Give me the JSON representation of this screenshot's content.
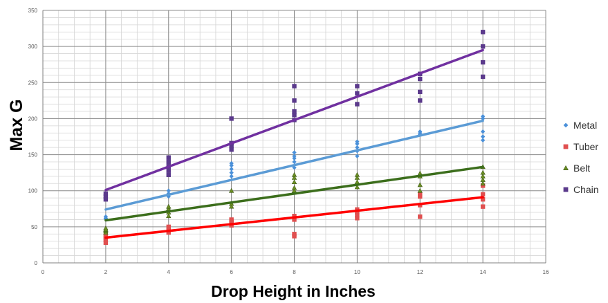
{
  "chart_data": {
    "type": "scatter",
    "title": "",
    "xlabel": "Drop Height in Inches",
    "ylabel": "Max G",
    "xlim": [
      0,
      16
    ],
    "ylim": [
      0,
      350
    ],
    "x_ticks": [
      "0",
      "2",
      "4",
      "6",
      "8",
      "10",
      "12",
      "14",
      "16"
    ],
    "y_ticks": [
      "0",
      "50",
      "100",
      "150",
      "200",
      "250",
      "300",
      "350"
    ],
    "grid": true,
    "legend_position": "right",
    "series": [
      {
        "name": "Metal",
        "marker": "diamond",
        "color": "#4a90d9",
        "trend_color": "#5b9bd5",
        "trendline": [
          [
            2,
            74
          ],
          [
            14,
            197
          ]
        ],
        "points": [
          [
            2,
            62
          ],
          [
            2,
            64
          ],
          [
            2,
            61
          ],
          [
            4,
            92
          ],
          [
            4,
            96
          ],
          [
            4,
            100
          ],
          [
            4,
            94
          ],
          [
            6,
            120
          ],
          [
            6,
            125
          ],
          [
            6,
            130
          ],
          [
            6,
            138
          ],
          [
            6,
            135
          ],
          [
            8,
            132
          ],
          [
            8,
            140
          ],
          [
            8,
            148
          ],
          [
            8,
            153
          ],
          [
            8,
            145
          ],
          [
            10,
            148
          ],
          [
            10,
            155
          ],
          [
            10,
            160
          ],
          [
            10,
            165
          ],
          [
            10,
            168
          ],
          [
            12,
            178
          ],
          [
            12,
            182
          ],
          [
            12,
            180
          ],
          [
            14,
            170
          ],
          [
            14,
            175
          ],
          [
            14,
            182
          ],
          [
            14,
            200
          ],
          [
            14,
            203
          ]
        ]
      },
      {
        "name": "Tuber",
        "marker": "square",
        "color": "#e05050",
        "trend_color": "#ff0000",
        "trendline": [
          [
            2,
            35
          ],
          [
            14,
            91
          ]
        ],
        "points": [
          [
            2,
            28
          ],
          [
            2,
            32
          ],
          [
            2,
            35
          ],
          [
            2,
            38
          ],
          [
            4,
            42
          ],
          [
            4,
            46
          ],
          [
            4,
            48
          ],
          [
            4,
            50
          ],
          [
            6,
            52
          ],
          [
            6,
            56
          ],
          [
            6,
            60
          ],
          [
            6,
            58
          ],
          [
            8,
            37
          ],
          [
            8,
            40
          ],
          [
            8,
            60
          ],
          [
            8,
            65
          ],
          [
            10,
            62
          ],
          [
            10,
            66
          ],
          [
            10,
            70
          ],
          [
            10,
            74
          ],
          [
            12,
            64
          ],
          [
            12,
            80
          ],
          [
            12,
            92
          ],
          [
            12,
            95
          ],
          [
            14,
            78
          ],
          [
            14,
            88
          ],
          [
            14,
            95
          ],
          [
            14,
            107
          ]
        ]
      },
      {
        "name": "Belt",
        "marker": "triangle",
        "color": "#6b8e23",
        "trend_color": "#3c6e1c",
        "trendline": [
          [
            2,
            59
          ],
          [
            14,
            133
          ]
        ],
        "points": [
          [
            2,
            42
          ],
          [
            2,
            44
          ],
          [
            2,
            46
          ],
          [
            2,
            48
          ],
          [
            4,
            65
          ],
          [
            4,
            70
          ],
          [
            4,
            75
          ],
          [
            4,
            78
          ],
          [
            6,
            78
          ],
          [
            6,
            82
          ],
          [
            6,
            100
          ],
          [
            8,
            100
          ],
          [
            8,
            104
          ],
          [
            8,
            112
          ],
          [
            8,
            118
          ],
          [
            8,
            122
          ],
          [
            10,
            105
          ],
          [
            10,
            112
          ],
          [
            10,
            118
          ],
          [
            10,
            122
          ],
          [
            12,
            100
          ],
          [
            12,
            108
          ],
          [
            12,
            120
          ],
          [
            12,
            124
          ],
          [
            14,
            110
          ],
          [
            14,
            115
          ],
          [
            14,
            120
          ],
          [
            14,
            125
          ],
          [
            14,
            133
          ]
        ]
      },
      {
        "name": "Chain",
        "marker": "square",
        "color": "#5b3a8c",
        "trend_color": "#7030a0",
        "trendline": [
          [
            2,
            101
          ],
          [
            14,
            295
          ]
        ],
        "points": [
          [
            2,
            88
          ],
          [
            2,
            92
          ],
          [
            2,
            96
          ],
          [
            4,
            122
          ],
          [
            4,
            128
          ],
          [
            4,
            134
          ],
          [
            4,
            140
          ],
          [
            4,
            146
          ],
          [
            6,
            157
          ],
          [
            6,
            162
          ],
          [
            6,
            166
          ],
          [
            6,
            200
          ],
          [
            8,
            198
          ],
          [
            8,
            205
          ],
          [
            8,
            210
          ],
          [
            8,
            225
          ],
          [
            8,
            245
          ],
          [
            10,
            220
          ],
          [
            10,
            235
          ],
          [
            10,
            245
          ],
          [
            12,
            225
          ],
          [
            12,
            237
          ],
          [
            12,
            255
          ],
          [
            12,
            262
          ],
          [
            14,
            258
          ],
          [
            14,
            278
          ],
          [
            14,
            300
          ],
          [
            14,
            320
          ]
        ]
      }
    ]
  }
}
